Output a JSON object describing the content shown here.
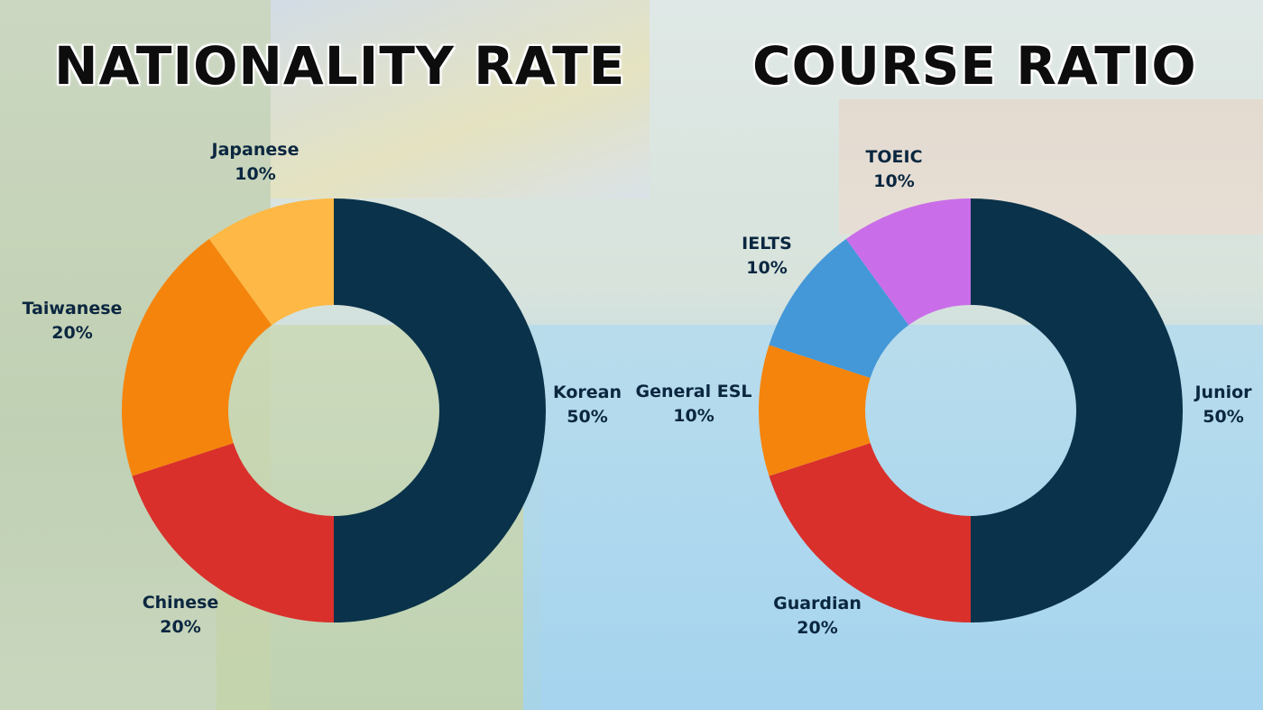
{
  "titles": {
    "left": "NATIONALITY RATE",
    "right": "COURSE RATIO"
  },
  "chart_data": [
    {
      "type": "pie",
      "title": "NATIONALITY RATE",
      "donut": true,
      "slices": [
        {
          "label": "Korean",
          "value": 50,
          "value_label": "50%",
          "color": "#0a324a"
        },
        {
          "label": "Chinese",
          "value": 20,
          "value_label": "20%",
          "color": "#d9302c"
        },
        {
          "label": "Taiwanese",
          "value": 20,
          "value_label": "20%",
          "color": "#f5840c"
        },
        {
          "label": "Japanese",
          "value": 10,
          "value_label": "10%",
          "color": "#fdb845"
        }
      ]
    },
    {
      "type": "pie",
      "title": "COURSE RATIO",
      "donut": true,
      "slices": [
        {
          "label": "Junior",
          "value": 50,
          "value_label": "50%",
          "color": "#0a324a"
        },
        {
          "label": "Guardian",
          "value": 20,
          "value_label": "20%",
          "color": "#d9302c"
        },
        {
          "label": "General ESL",
          "value": 10,
          "value_label": "10%",
          "color": "#f5840c"
        },
        {
          "label": "IELTS",
          "value": 10,
          "value_label": "10%",
          "color": "#4498d8"
        },
        {
          "label": "TOEIC",
          "value": 10,
          "value_label": "10%",
          "color": "#c96ee8"
        }
      ]
    }
  ]
}
